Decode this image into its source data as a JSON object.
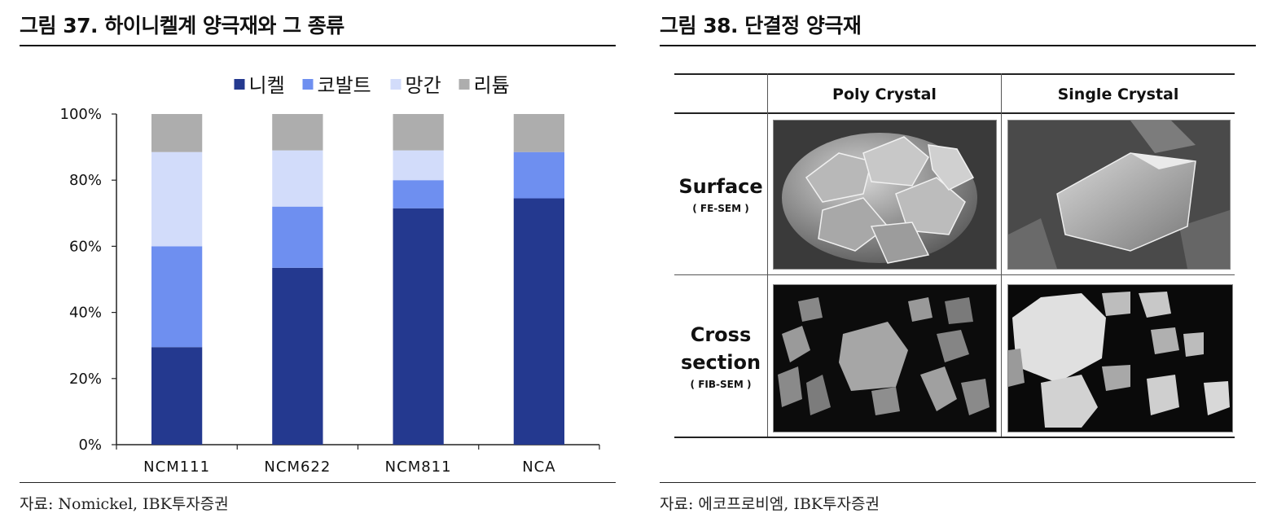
{
  "left_figure": {
    "title": "그림 37. 하이니켈계 양극재와 그 종류",
    "source": "자료: Nomickel, IBK투자증권"
  },
  "right_figure": {
    "title": "그림 38. 단결정 양극재",
    "source": "자료: 에코프로비엠, IBK투자증권",
    "table": {
      "columns": [
        "Poly Crystal",
        "Single Crystal"
      ],
      "rows": [
        {
          "label": "Surface",
          "sublabel": "( FE-SEM )"
        },
        {
          "label": "Cross section",
          "label_line1": "Cross",
          "label_line2": "section",
          "sublabel": "( FIB-SEM )"
        }
      ]
    }
  },
  "chart_data": {
    "type": "bar",
    "stacked": true,
    "categories": [
      "NCM111",
      "NCM622",
      "NCM811",
      "NCA"
    ],
    "series": [
      {
        "name": "니켈",
        "color": "#24398f",
        "values": [
          29.5,
          53.5,
          71.5,
          74.5
        ]
      },
      {
        "name": "코발트",
        "color": "#6e8ff0",
        "values": [
          30.5,
          18.5,
          8.5,
          14
        ]
      },
      {
        "name": "망간",
        "color": "#d2dcfa",
        "values": [
          28.5,
          17,
          9,
          0
        ]
      },
      {
        "name": "리튬",
        "color": "#adadad",
        "values": [
          11.5,
          11,
          11,
          11.5
        ]
      }
    ],
    "ylim": [
      0,
      100
    ],
    "yticks": [
      "0%",
      "20%",
      "40%",
      "60%",
      "80%",
      "100%"
    ],
    "legend_position": "top"
  }
}
